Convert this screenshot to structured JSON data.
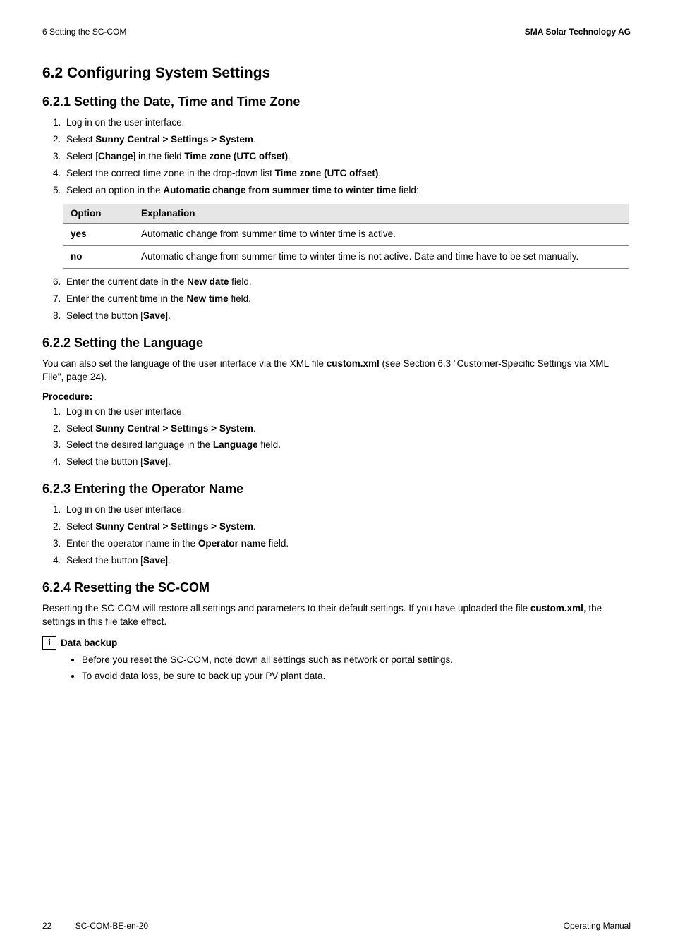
{
  "header": {
    "left": "6  Setting the SC-COM",
    "right": "SMA Solar Technology AG"
  },
  "sec62": {
    "title": "6.2   Configuring System Settings"
  },
  "sec621": {
    "title": "6.2.1     Setting the Date, Time and Time Zone",
    "steps": [
      {
        "pre": "Log in on the user interface."
      },
      {
        "pre": "Select ",
        "b1": "Sunny Central > Settings > System",
        "post": "."
      },
      {
        "pre": "Select [",
        "b1": "Change",
        "mid": "] in the field ",
        "b2": "Time zone (UTC offset)",
        "post": "."
      },
      {
        "pre": "Select the correct time zone in the drop-down list ",
        "b1": "Time zone (UTC offset)",
        "post": "."
      },
      {
        "pre": "Select an option in the ",
        "b1": "Automatic change from summer time to winter time",
        "post": " field:"
      }
    ],
    "table": {
      "head_option": "Option",
      "head_expl": "Explanation",
      "rows": [
        {
          "opt": "yes",
          "expl": "Automatic change from summer time to winter time is active."
        },
        {
          "opt": "no",
          "expl": "Automatic change from summer time to winter time is not active. Date and time have to be set manually."
        }
      ]
    },
    "steps2": [
      {
        "pre": "Enter the current date in the ",
        "b1": "New date",
        "post": " field."
      },
      {
        "pre": "Enter the current time in the ",
        "b1": "New time",
        "post": " field."
      },
      {
        "pre": "Select the button [",
        "b1": "Save",
        "post": "]."
      }
    ]
  },
  "sec622": {
    "title": "6.2.2     Setting the Language",
    "intro_pre": "You can also set the language of the user interface via the XML file ",
    "intro_b": "custom.xml",
    "intro_post": " (see Section 6.3 \"Customer-Specific Settings via XML File\", page 24).",
    "procedure_label": "Procedure:",
    "steps": [
      {
        "pre": "Log in on the user interface."
      },
      {
        "pre": "Select ",
        "b1": "Sunny Central > Settings > System",
        "post": "."
      },
      {
        "pre": "Select the desired language in the ",
        "b1": "Language",
        "post": " field."
      },
      {
        "pre": "Select the button [",
        "b1": "Save",
        "post": "]."
      }
    ]
  },
  "sec623": {
    "title": "6.2.3     Entering the Operator Name",
    "steps": [
      {
        "pre": "Log in on the user interface."
      },
      {
        "pre": "Select ",
        "b1": "Sunny Central > Settings > System",
        "post": "."
      },
      {
        "pre": "Enter the operator name in the ",
        "b1": "Operator name",
        "post": " field."
      },
      {
        "pre": "Select the button [",
        "b1": "Save",
        "post": "]."
      }
    ]
  },
  "sec624": {
    "title": "6.2.4     Resetting the SC-COM",
    "intro_pre": "Resetting the SC-COM will restore all settings and parameters to their default settings. If you have uploaded the file ",
    "intro_b": "custom.xml",
    "intro_post": ", the settings in this file take effect.",
    "info_title": "Data backup",
    "bullets": [
      "Before you reset the SC-COM, note down all settings such as network or portal settings.",
      "To avoid data loss, be sure to back up your PV plant data."
    ]
  },
  "footer": {
    "page": "22",
    "doc": "SC-COM-BE-en-20",
    "right": "Operating Manual"
  }
}
